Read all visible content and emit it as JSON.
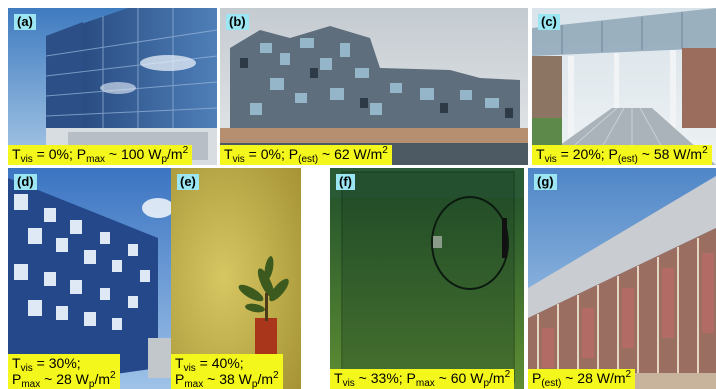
{
  "panels": [
    {
      "tag": "(a)",
      "cap": {
        "lead": "T",
        "lead_sub": "vis",
        "mid": " = 0%; P",
        "mid_sub": "max",
        "val": " ~ 100 W",
        "val_sub": "p",
        "unit": "/m",
        "unit_sup": "2"
      }
    },
    {
      "tag": "(b)",
      "cap": {
        "lead": "T",
        "lead_sub": "vis",
        "mid": " = 0%; P",
        "mid_sub": "(est)",
        "val": " ~ 62 W/m",
        "unit_sup": "2"
      }
    },
    {
      "tag": "(c)",
      "cap": {
        "lead": "T",
        "lead_sub": "vis",
        "mid": " = 20%; P",
        "mid_sub": "(est)",
        "val": " ~ 58 W/m",
        "unit_sup": "2"
      }
    },
    {
      "tag": "(d)",
      "cap": {
        "line1": "T",
        "line1_sub": "vis",
        "line1_rest": " = 30%;",
        "line2": "P",
        "line2_sub": "max",
        "val": " ~ 28 W",
        "val_sub": "p",
        "unit": "/m",
        "unit_sup": "2"
      }
    },
    {
      "tag": "(e)",
      "cap": {
        "line1": "T",
        "line1_sub": "vis",
        "line1_rest": " = 40%;",
        "line2": "P",
        "line2_sub": "max",
        "val": " ~ 38 W",
        "val_sub": "p",
        "unit": "/m",
        "unit_sup": "2"
      }
    },
    {
      "tag": "(f)",
      "cap": {
        "lead": "T",
        "lead_sub": "vis",
        "mid": " ~ 33%; P",
        "mid_sub": "max",
        "val": " ~ 60 W",
        "val_sub": "p",
        "unit": "/m",
        "unit_sup": "2"
      }
    },
    {
      "tag": "(g)",
      "cap": {
        "lead": "P",
        "lead_sub": "(est)",
        "val": " ~ 28 W/m",
        "unit_sup": "2"
      }
    }
  ]
}
